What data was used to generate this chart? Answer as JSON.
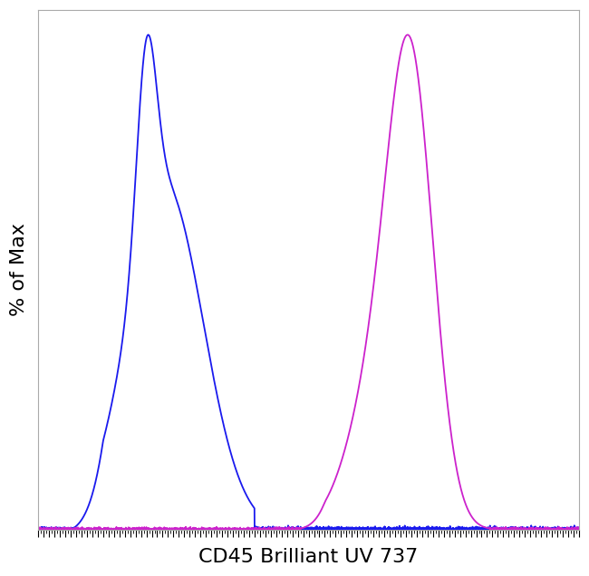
{
  "title": "",
  "xlabel": "CD45 Brilliant UV 737",
  "ylabel": "% of Max",
  "xlabel_fontsize": 16,
  "ylabel_fontsize": 16,
  "background_color": "#ffffff",
  "line_color_blue": "#1a1aee",
  "line_color_pink": "#cc22cc",
  "line_width": 1.3,
  "xlim": [
    0,
    1000
  ],
  "ylim": [
    0,
    1.05
  ],
  "spine_color": "#aaaaaa",
  "tick_color": "#000000",
  "n_points": 4000
}
